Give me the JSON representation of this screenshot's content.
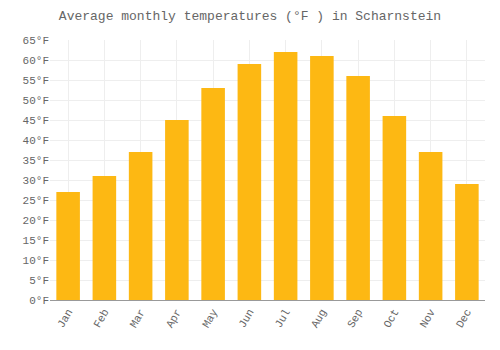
{
  "chart_data": {
    "type": "bar",
    "title": "Average monthly temperatures (°F ) in Scharnstein",
    "categories": [
      "Jan",
      "Feb",
      "Mar",
      "Apr",
      "May",
      "Jun",
      "Jul",
      "Aug",
      "Sep",
      "Oct",
      "Nov",
      "Dec"
    ],
    "values": [
      27,
      31,
      37,
      45,
      53,
      59,
      62,
      61,
      56,
      46,
      37,
      29
    ],
    "color": "#FDB813",
    "ylim": [
      0,
      65
    ],
    "yticks": [
      {
        "value": 0,
        "label": "0°F"
      },
      {
        "value": 5,
        "label": "5°F"
      },
      {
        "value": 10,
        "label": "10°F"
      },
      {
        "value": 15,
        "label": "15°F"
      },
      {
        "value": 20,
        "label": "20°F"
      },
      {
        "value": 25,
        "label": "25°F"
      },
      {
        "value": 30,
        "label": "30°F"
      },
      {
        "value": 35,
        "label": "35°F"
      },
      {
        "value": 40,
        "label": "40°F"
      },
      {
        "value": 45,
        "label": "45°F"
      },
      {
        "value": 50,
        "label": "50°F"
      },
      {
        "value": 55,
        "label": "55°F"
      },
      {
        "value": 60,
        "label": "60°F"
      },
      {
        "value": 65,
        "label": "65°F"
      }
    ],
    "grid": true
  }
}
